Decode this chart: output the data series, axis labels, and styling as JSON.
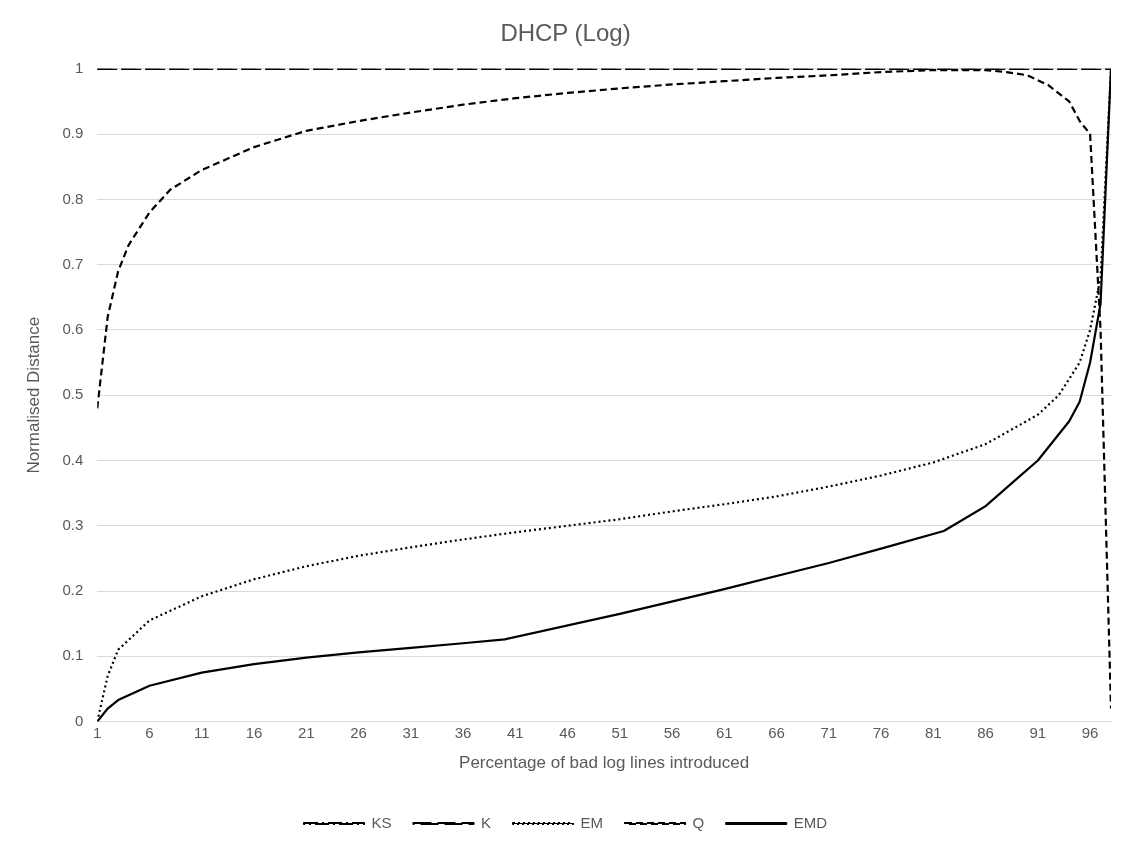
{
  "chart_data": {
    "type": "line",
    "title": "DHCP (Log)",
    "xlabel": "Percentage of bad log lines introduced",
    "ylabel": "Normalised Distance",
    "xlim": [
      1,
      98
    ],
    "xticks": [
      1,
      6,
      11,
      16,
      21,
      26,
      31,
      36,
      41,
      46,
      51,
      56,
      61,
      66,
      71,
      76,
      81,
      86,
      91,
      96
    ],
    "ylim": [
      0,
      1
    ],
    "yticks": [
      0,
      0.1,
      0.2,
      0.3,
      0.4,
      0.5,
      0.6,
      0.7,
      0.8,
      0.9,
      1
    ],
    "grid": "y",
    "legend": "bottom",
    "marker": "none",
    "series": [
      {
        "name": "KS",
        "color": "#000000",
        "line_style": "dashdot",
        "x": [
          1,
          98
        ],
        "values": [
          1,
          1
        ]
      },
      {
        "name": "K",
        "color": "#000000",
        "line_style": "longdash",
        "x": [
          1,
          98
        ],
        "values": [
          1,
          1
        ]
      },
      {
        "name": "EM",
        "color": "#000000",
        "line_style": "dotted",
        "x": [
          1,
          2,
          3,
          6,
          11,
          16,
          21,
          26,
          31,
          36,
          41,
          46,
          51,
          56,
          61,
          66,
          71,
          76,
          81,
          86,
          91,
          93,
          95,
          96,
          97,
          98
        ],
        "values": [
          0,
          0.07,
          0.11,
          0.155,
          0.192,
          0.218,
          0.238,
          0.254,
          0.267,
          0.279,
          0.29,
          0.3,
          0.31,
          0.322,
          0.333,
          0.345,
          0.36,
          0.377,
          0.397,
          0.425,
          0.47,
          0.5,
          0.55,
          0.6,
          0.68,
          1
        ]
      },
      {
        "name": "Q",
        "color": "#000000",
        "line_style": "dashed",
        "x": [
          1,
          2,
          3,
          4,
          6,
          8,
          11,
          16,
          21,
          26,
          31,
          36,
          41,
          46,
          51,
          56,
          61,
          66,
          71,
          76,
          81,
          86,
          88,
          90,
          92,
          94,
          95,
          96,
          97,
          98
        ],
        "values": [
          0.48,
          0.62,
          0.69,
          0.73,
          0.78,
          0.815,
          0.845,
          0.88,
          0.905,
          0.92,
          0.933,
          0.945,
          0.955,
          0.963,
          0.97,
          0.976,
          0.981,
          0.986,
          0.99,
          0.995,
          0.998,
          0.998,
          0.995,
          0.99,
          0.975,
          0.95,
          0.92,
          0.9,
          0.6,
          0.02
        ]
      },
      {
        "name": "EMD",
        "color": "#000000",
        "line_style": "solid",
        "x": [
          1,
          2,
          3,
          6,
          11,
          16,
          21,
          26,
          31,
          36,
          40,
          51,
          61,
          71,
          76,
          82,
          86,
          91,
          94,
          95,
          96,
          97,
          98
        ],
        "values": [
          0,
          0.02,
          0.033,
          0.055,
          0.075,
          0.088,
          0.098,
          0.106,
          0.113,
          0.12,
          0.126,
          0.165,
          0.203,
          0.243,
          0.265,
          0.292,
          0.33,
          0.4,
          0.46,
          0.49,
          0.55,
          0.64,
          1
        ]
      }
    ]
  }
}
